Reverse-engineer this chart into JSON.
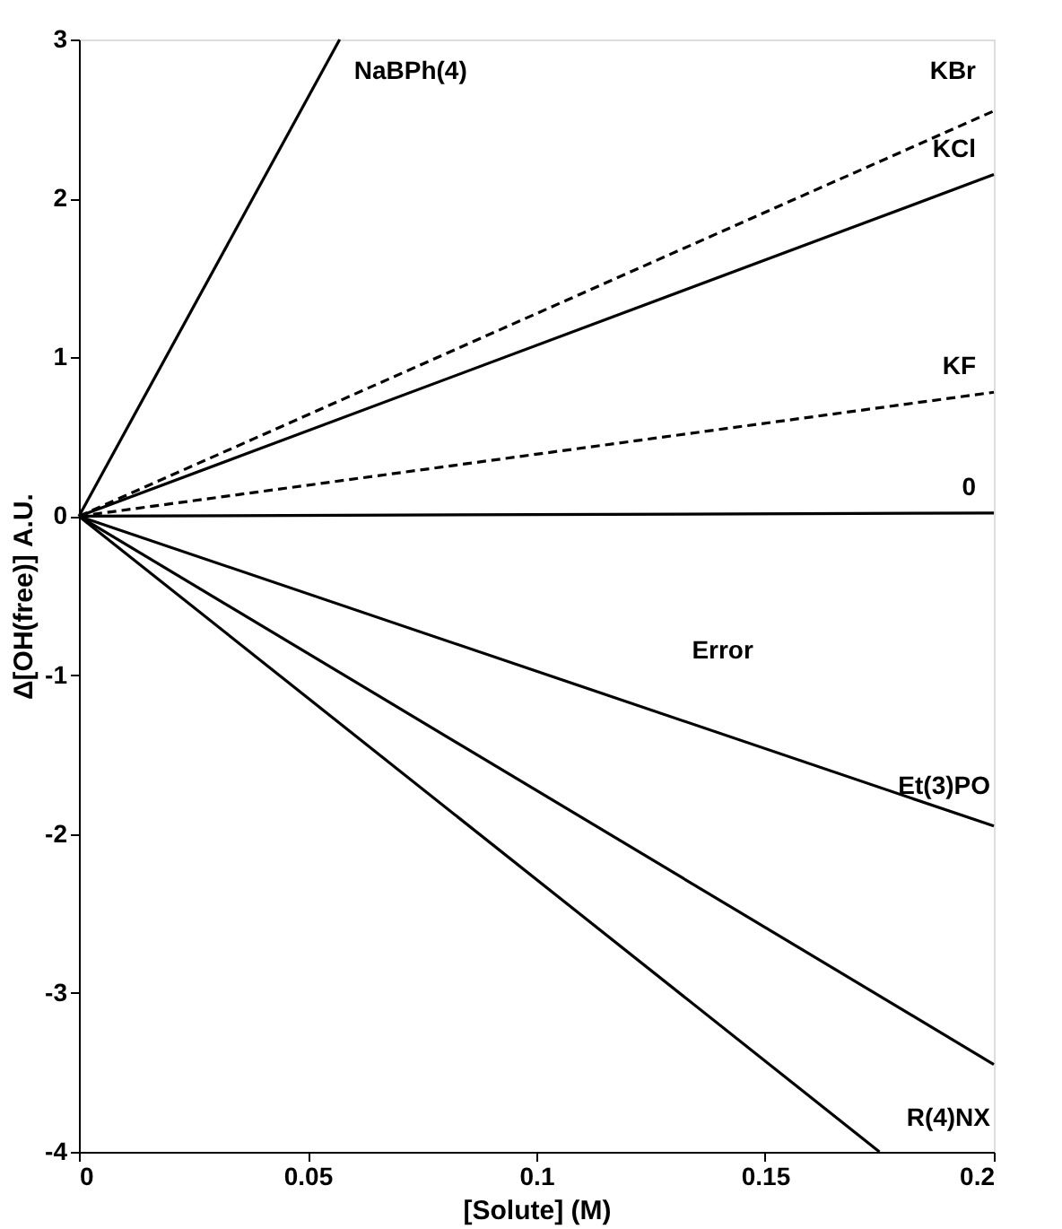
{
  "chart_data": {
    "type": "line",
    "xlabel": "[Solute] (M)",
    "ylabel": "Δ[OH(free)]  A.U.",
    "xlim": [
      0,
      0.2
    ],
    "ylim": [
      -4,
      3
    ],
    "xticks": [
      0,
      0.05,
      0.1,
      0.15,
      0.2
    ],
    "yticks": [
      -4,
      -3,
      -2,
      -1,
      0,
      1,
      2,
      3
    ],
    "grid": false,
    "marker": "none",
    "series": [
      {
        "name": "NaBPh(4)",
        "color": "#000000",
        "x": [
          0,
          0.057
        ],
        "values": [
          0,
          3
        ]
      },
      {
        "name": "KBr",
        "color": "#000000",
        "x": [
          0,
          0.2
        ],
        "values": [
          0,
          2.55
        ],
        "line_style": "dashed"
      },
      {
        "name": "KCl",
        "color": "#000000",
        "x": [
          0,
          0.2
        ],
        "values": [
          0,
          2.15
        ]
      },
      {
        "name": "KF",
        "color": "#000000",
        "x": [
          0,
          0.2
        ],
        "values": [
          0,
          0.78
        ],
        "line_style": "dashed"
      },
      {
        "name": "0",
        "color": "#000000",
        "x": [
          0,
          0.2
        ],
        "values": [
          0,
          0.02
        ]
      },
      {
        "name": "Et(3)PO",
        "color": "#000000",
        "x": [
          0,
          0.2
        ],
        "values": [
          0,
          -1.95
        ]
      },
      {
        "name": "R(4)NX",
        "color": "#000000",
        "x": [
          0,
          0.2
        ],
        "values": [
          0,
          -3.45
        ]
      },
      {
        "color": "#000000",
        "x": [
          0,
          0.175
        ],
        "values": [
          0,
          -4
        ]
      }
    ],
    "annotations": [
      "Error"
    ]
  }
}
